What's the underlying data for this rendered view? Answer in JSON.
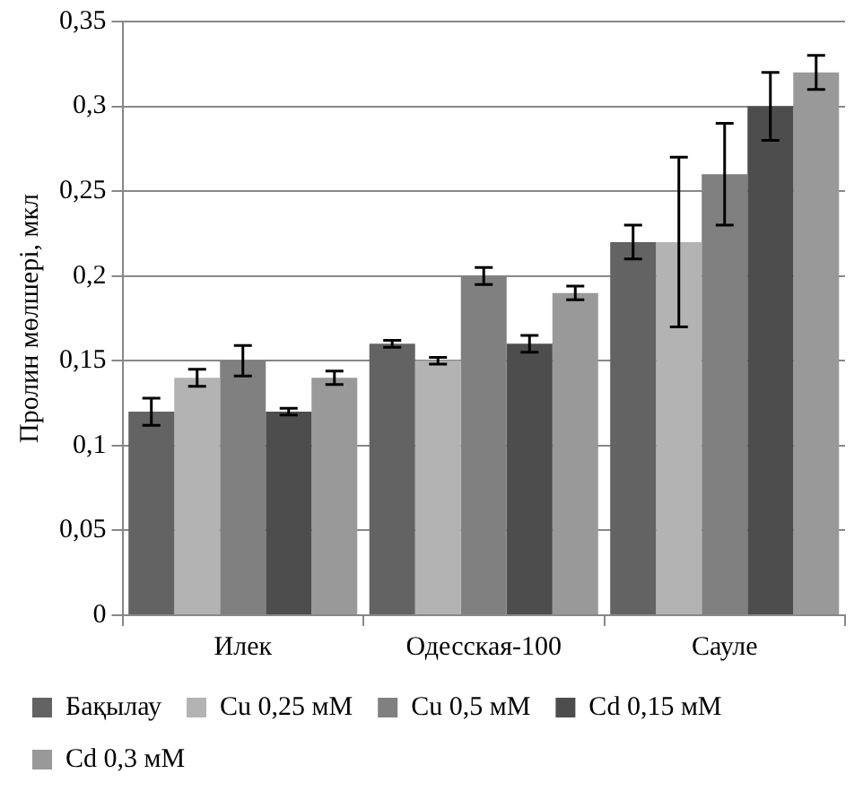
{
  "chart_data": {
    "type": "bar",
    "ylabel": "Пролин мөлшері, мкл",
    "categories": [
      "Илек",
      "Одесская-100",
      "Сауле"
    ],
    "series": [
      {
        "name": "Бақылау",
        "color": "#636363",
        "values": [
          0.12,
          0.16,
          0.22
        ],
        "errors": [
          0.008,
          0.002,
          0.01
        ]
      },
      {
        "name": "Cu 0,25 мМ",
        "color": "#b3b3b3",
        "values": [
          0.14,
          0.15,
          0.22
        ],
        "errors": [
          0.005,
          0.002,
          [
            0.17,
            0.27
          ]
        ]
      },
      {
        "name": "Cu 0,5 мМ",
        "color": "#808080",
        "values": [
          0.15,
          0.2,
          0.26
        ],
        "errors": [
          0.009,
          0.005,
          0.03
        ]
      },
      {
        "name": "Cd 0,15 мМ",
        "color": "#4d4d4d",
        "values": [
          0.12,
          0.16,
          0.3
        ],
        "errors": [
          0.002,
          0.005,
          0.02
        ]
      },
      {
        "name": "Cd 0,3 мМ",
        "color": "#999999",
        "values": [
          0.14,
          0.19,
          0.32
        ],
        "errors": [
          0.004,
          0.004,
          0.01
        ]
      }
    ],
    "ylim": [
      0,
      0.35
    ],
    "yticks": [
      {
        "value": 0,
        "label": "0"
      },
      {
        "value": 0.05,
        "label": "0,05"
      },
      {
        "value": 0.1,
        "label": "0,1"
      },
      {
        "value": 0.15,
        "label": "0,15"
      },
      {
        "value": 0.2,
        "label": "0,2"
      },
      {
        "value": 0.25,
        "label": "0,25"
      },
      {
        "value": 0.3,
        "label": "0,3"
      },
      {
        "value": 0.35,
        "label": "0,35"
      }
    ],
    "grid": "y",
    "legend": "bottom"
  }
}
